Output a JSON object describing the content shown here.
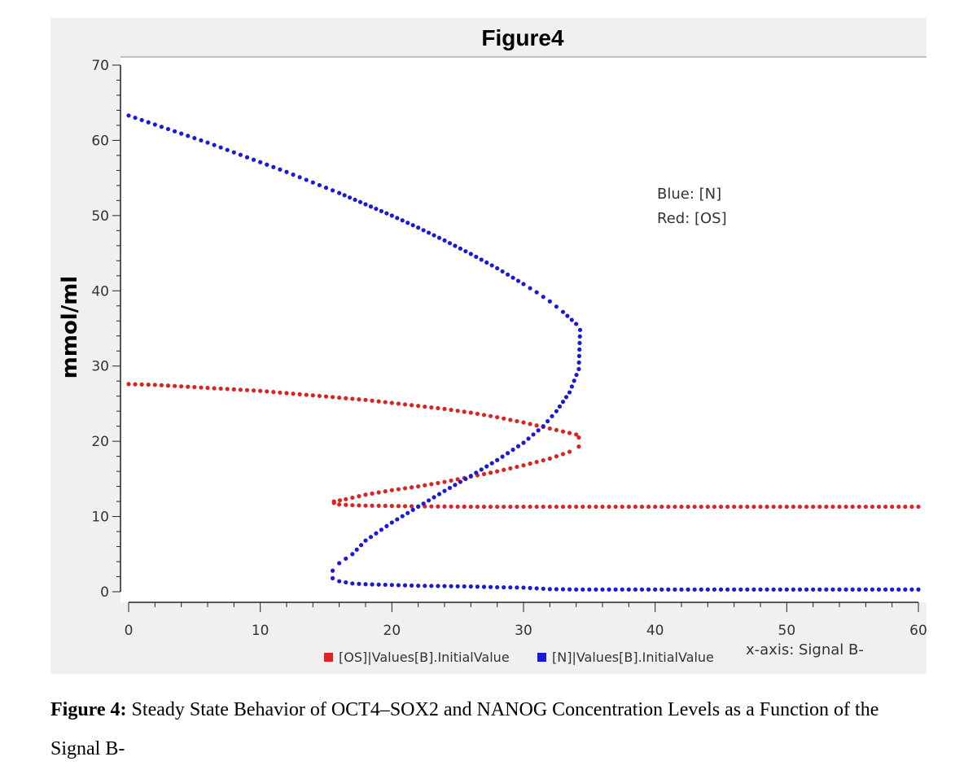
{
  "chart_data": {
    "type": "scatter",
    "title": "Figure4",
    "xlabel": "x-axis: Signal B-",
    "ylabel": "mmol/ml",
    "xlim": [
      0,
      60
    ],
    "ylim": [
      0,
      70
    ],
    "xticks": [
      0,
      10,
      20,
      30,
      40,
      50,
      60
    ],
    "yticks": [
      0,
      10,
      20,
      30,
      40,
      50,
      60,
      70
    ],
    "annotation": [
      "Blue: [N]",
      "Red: [OS]"
    ],
    "legend": {
      "placement": "bottom-center"
    },
    "series": [
      {
        "name": "[OS]|Values[B].InitialValue",
        "color": "#dd2222",
        "points": [
          [
            0,
            27.6
          ],
          [
            2,
            27.5
          ],
          [
            4,
            27.3
          ],
          [
            6,
            27.1
          ],
          [
            8,
            26.9
          ],
          [
            10,
            26.7
          ],
          [
            12,
            26.4
          ],
          [
            14,
            26.1
          ],
          [
            16,
            25.8
          ],
          [
            18,
            25.5
          ],
          [
            20,
            25.1
          ],
          [
            22,
            24.7
          ],
          [
            24,
            24.3
          ],
          [
            26,
            23.8
          ],
          [
            28,
            23.2
          ],
          [
            30,
            22.5
          ],
          [
            31,
            22.1
          ],
          [
            32,
            21.7
          ],
          [
            33,
            21.3
          ],
          [
            34,
            20.9
          ],
          [
            34.2,
            20.5
          ],
          [
            34.2,
            19.3
          ],
          [
            33.5,
            18.6
          ],
          [
            32,
            17.7
          ],
          [
            30,
            16.8
          ],
          [
            28,
            16.0
          ],
          [
            26,
            15.3
          ],
          [
            24,
            14.6
          ],
          [
            22,
            14.0
          ],
          [
            20,
            13.5
          ],
          [
            18,
            12.9
          ],
          [
            16.5,
            12.3
          ],
          [
            15.6,
            12.0
          ],
          [
            15.6,
            11.8
          ],
          [
            16,
            11.6
          ],
          [
            17,
            11.5
          ],
          [
            18,
            11.45
          ],
          [
            20,
            11.4
          ],
          [
            22,
            11.35
          ],
          [
            24,
            11.33
          ],
          [
            26,
            11.3
          ],
          [
            28,
            11.3
          ],
          [
            30,
            11.3
          ],
          [
            32,
            11.3
          ],
          [
            34,
            11.3
          ],
          [
            36,
            11.3
          ],
          [
            38,
            11.3
          ],
          [
            40,
            11.3
          ],
          [
            42,
            11.3
          ],
          [
            44,
            11.3
          ],
          [
            46,
            11.3
          ],
          [
            48,
            11.3
          ],
          [
            50,
            11.3
          ],
          [
            52,
            11.3
          ],
          [
            54,
            11.3
          ],
          [
            56,
            11.3
          ],
          [
            58,
            11.3
          ],
          [
            60,
            11.3
          ]
        ]
      },
      {
        "name": "[N]|Values[B].InitialValue",
        "color": "#1a1ad6",
        "points": [
          [
            0,
            63.3
          ],
          [
            2,
            62.1
          ],
          [
            4,
            60.9
          ],
          [
            6,
            59.7
          ],
          [
            8,
            58.4
          ],
          [
            10,
            57.1
          ],
          [
            12,
            55.8
          ],
          [
            14,
            54.4
          ],
          [
            16,
            53.0
          ],
          [
            18,
            51.5
          ],
          [
            20,
            50.0
          ],
          [
            22,
            48.4
          ],
          [
            24,
            46.7
          ],
          [
            26,
            44.9
          ],
          [
            28,
            43.0
          ],
          [
            30,
            40.9
          ],
          [
            31,
            39.8
          ],
          [
            32,
            38.6
          ],
          [
            33,
            37.2
          ],
          [
            34,
            35.6
          ],
          [
            34.3,
            34.8
          ],
          [
            34.2,
            29.6
          ],
          [
            33.5,
            26.5
          ],
          [
            32.5,
            24.0
          ],
          [
            31.5,
            22.0
          ],
          [
            30,
            19.8
          ],
          [
            28,
            17.5
          ],
          [
            26,
            15.4
          ],
          [
            24,
            13.4
          ],
          [
            22,
            11.3
          ],
          [
            20,
            9.2
          ],
          [
            18,
            6.8
          ],
          [
            17,
            5.0
          ],
          [
            16,
            3.8
          ],
          [
            15.5,
            2.8
          ],
          [
            15.5,
            1.8
          ],
          [
            16,
            1.4
          ],
          [
            17,
            1.1
          ],
          [
            18,
            1.0
          ],
          [
            20,
            0.9
          ],
          [
            22,
            0.8
          ],
          [
            24,
            0.75
          ],
          [
            26,
            0.7
          ],
          [
            28,
            0.6
          ],
          [
            30,
            0.55
          ],
          [
            32,
            0.35
          ],
          [
            34,
            0.3
          ],
          [
            36,
            0.3
          ],
          [
            38,
            0.3
          ],
          [
            40,
            0.3
          ],
          [
            42,
            0.3
          ],
          [
            44,
            0.3
          ],
          [
            46,
            0.3
          ],
          [
            48,
            0.3
          ],
          [
            50,
            0.3
          ],
          [
            52,
            0.3
          ],
          [
            54,
            0.3
          ],
          [
            56,
            0.3
          ],
          [
            58,
            0.3
          ],
          [
            60,
            0.3
          ]
        ]
      }
    ]
  },
  "caption": {
    "label": "Figure 4:",
    "text": " Steady State Behavior of OCT4–SOX2 and NANOG Concentration Levels as a Function of the Signal B-"
  }
}
